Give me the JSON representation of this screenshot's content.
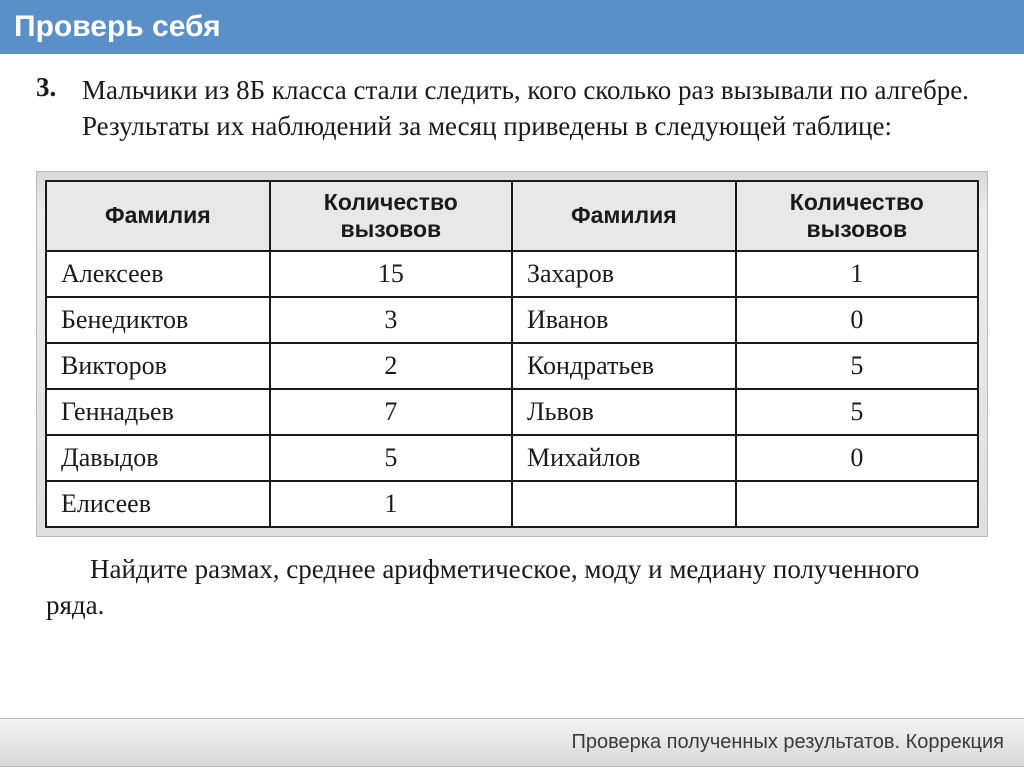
{
  "header": {
    "title": "Проверь себя"
  },
  "problem": {
    "number": "3.",
    "text": "Мальчики из 8Б класса стали следить, кого сколько раз вызывали по алгебре. Результаты их наблюдений за месяц приведены в следующей таблице:"
  },
  "table": {
    "columns": [
      "Фамилия",
      "Количество вызовов",
      "Фамилия",
      "Количество вызовов"
    ],
    "col_widths_pct": [
      24,
      26,
      24,
      26
    ],
    "header_bg": "#e8e8e8",
    "border_color": "#1a1a1a",
    "cell_font_size_pt": 20,
    "header_font_size_pt": 17,
    "rows": [
      [
        "Алексеев",
        "15",
        "Захаров",
        "1"
      ],
      [
        "Бенедиктов",
        "3",
        "Иванов",
        "0"
      ],
      [
        "Викторов",
        "2",
        "Кондратьев",
        "5"
      ],
      [
        "Геннадьев",
        "7",
        "Львов",
        "5"
      ],
      [
        "Давыдов",
        "5",
        "Михайлов",
        "0"
      ],
      [
        "Елисеев",
        "1",
        "",
        ""
      ]
    ]
  },
  "after": "Найдите размах, среднее арифметическое, моду и медиану полученного ряда.",
  "footer": {
    "text": "Проверка полученных результатов. Коррекция"
  },
  "style": {
    "header_bg": "#5a8fc7",
    "header_fg": "#ffffff",
    "body_bg": "#ffffff",
    "text_color": "#1a1a1a",
    "footer_bg_top": "#f3f3f3",
    "footer_bg_bottom": "#d8d8d8",
    "footer_fg": "#3a3a3a",
    "table_wrap_bg": "#e0e0e0",
    "body_font_size_pt": 20,
    "header_font_size_pt": 22,
    "footer_font_size_pt": 15
  }
}
